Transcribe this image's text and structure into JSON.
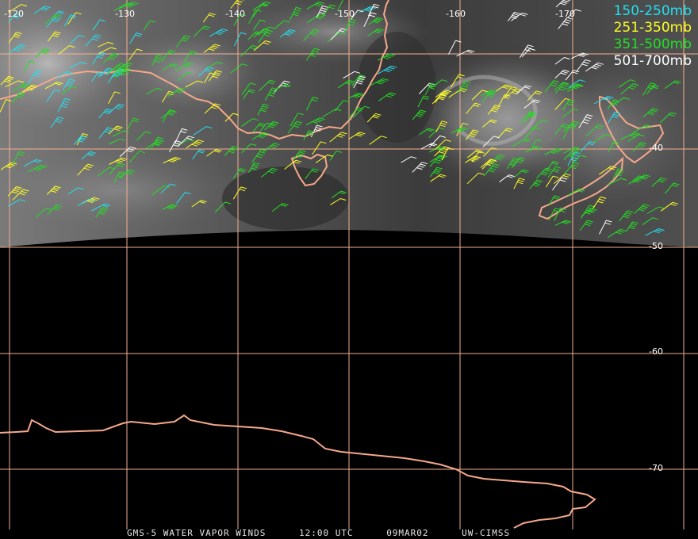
{
  "map": {
    "longitude_labels": [
      "-120",
      "-130",
      "-140",
      "-150",
      "-160",
      "-170"
    ],
    "latitude_labels": [
      "-40",
      "-50",
      "-60",
      "-70"
    ],
    "grid_color": "#f0b090",
    "coastline_color": "#f5a88a"
  },
  "legend": [
    {
      "label": "150-250mb",
      "color": "#22e0f0"
    },
    {
      "label": "251-350mb",
      "color": "#ffff22"
    },
    {
      "label": "351-500mb",
      "color": "#22e022"
    },
    {
      "label": "501-700mb",
      "color": "#ffffff"
    }
  ],
  "footer": {
    "product": "GMS-5 WATER VAPOR WINDS",
    "time": "12:00 UTC",
    "date": "09MAR02",
    "source": "UW-CIMSS"
  }
}
